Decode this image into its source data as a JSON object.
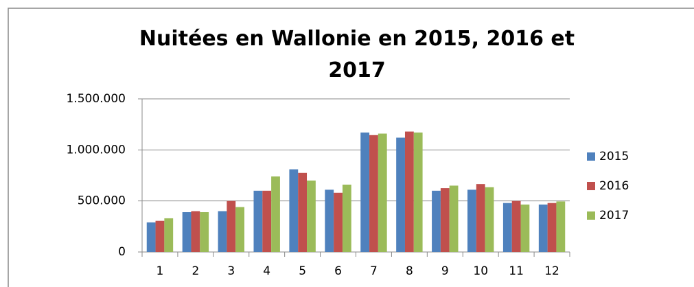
{
  "chart_data": {
    "type": "bar",
    "title": "Nuitées en Wallonie en 2015, 2016 et 2017",
    "categories": [
      "1",
      "2",
      "3",
      "4",
      "5",
      "6",
      "7",
      "8",
      "9",
      "10",
      "11",
      "12"
    ],
    "series": [
      {
        "name": "2015",
        "color": "#4f81bd",
        "values": [
          290000,
          390000,
          400000,
          600000,
          810000,
          610000,
          1170000,
          1120000,
          600000,
          610000,
          480000,
          465000
        ]
      },
      {
        "name": "2016",
        "color": "#c0504d",
        "values": [
          305000,
          400000,
          500000,
          600000,
          775000,
          580000,
          1145000,
          1180000,
          625000,
          665000,
          500000,
          480000
        ]
      },
      {
        "name": "2017",
        "color": "#9bbb59",
        "values": [
          330000,
          390000,
          440000,
          740000,
          700000,
          660000,
          1160000,
          1170000,
          650000,
          635000,
          465000,
          495000
        ]
      }
    ],
    "ylim": [
      0,
      1500000
    ],
    "yticks": [
      0,
      {
        "value": 500000,
        "label": "500.000"
      },
      {
        "value": 1000000,
        "label": "1.000.000"
      },
      {
        "value": 1500000,
        "label": "1.500.000"
      }
    ],
    "grid": true,
    "legend": "right"
  }
}
